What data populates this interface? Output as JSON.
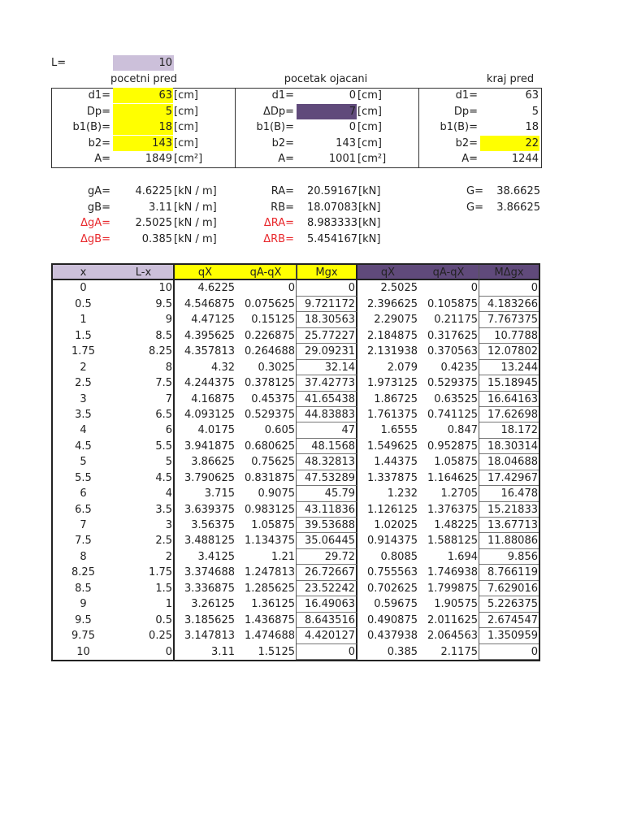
{
  "L": {
    "label": "L=",
    "value": "10"
  },
  "sections": [
    {
      "title": "pocetni pred",
      "rows": [
        {
          "label": "d1=",
          "value": "63",
          "unit": "[cm]"
        },
        {
          "label": "Dp=",
          "value": "5",
          "unit": "[cm]"
        },
        {
          "label": "b1(B)=",
          "value": "18",
          "unit": "[cm]"
        },
        {
          "label": "b2=",
          "value": "143",
          "unit": "[cm]"
        },
        {
          "label": "A=",
          "value": "1849",
          "unit": "[cm²]"
        }
      ]
    },
    {
      "title": "pocetak ojacani",
      "rows": [
        {
          "label": "d1=",
          "value": "0",
          "unit": "[cm]"
        },
        {
          "label": "ΔDp=",
          "value": "7",
          "unit": "[cm]"
        },
        {
          "label": "b1(B)=",
          "value": "0",
          "unit": "[cm]"
        },
        {
          "label": "b2=",
          "value": "143",
          "unit": "[cm]"
        },
        {
          "label": "A=",
          "value": "1001",
          "unit": "[cm²]"
        }
      ]
    },
    {
      "title": "kraj pred",
      "rows": [
        {
          "label": "d1=",
          "value": "63"
        },
        {
          "label": "Dp=",
          "value": "5"
        },
        {
          "label": "b1(B)=",
          "value": "18"
        },
        {
          "label": "b2=",
          "value": "22"
        },
        {
          "label": "A=",
          "value": "1244"
        }
      ]
    }
  ],
  "loads": [
    {
      "label": "gA=",
      "value": "4.6225",
      "unit": "[kN / m]"
    },
    {
      "label": "gB=",
      "value": "3.11",
      "unit": "[kN / m]"
    },
    {
      "label": "ΔgA=",
      "value": "2.5025",
      "unit": "[kN / m]"
    },
    {
      "label": "ΔgB=",
      "value": "0.385",
      "unit": "[kN / m]"
    }
  ],
  "reactions": [
    {
      "label": "RA=",
      "value": "20.59167",
      "unit": "[kN]"
    },
    {
      "label": "RB=",
      "value": "18.07083",
      "unit": "[kN]"
    },
    {
      "label": "ΔRA=",
      "value": "8.983333",
      "unit": "[kN]"
    },
    {
      "label": "ΔRB=",
      "value": "5.454167",
      "unit": "[kN]"
    }
  ],
  "totals": [
    {
      "label": "G=",
      "value": "38.6625"
    },
    {
      "label": "G=",
      "value": "3.86625"
    }
  ],
  "colors": {
    "yellow": "#ffff00",
    "lavender": "#ccc0da",
    "purple": "#604a7b",
    "red": "#e8282c"
  },
  "table": {
    "headers": [
      "x",
      "L-x",
      "qX",
      "qA-qX",
      "Mgx",
      "qX",
      "qA-qX",
      "MΔgx"
    ],
    "rows": [
      [
        "0",
        "10",
        "4.6225",
        "0",
        "0",
        "2.5025",
        "0",
        "0"
      ],
      [
        "0.5",
        "9.5",
        "4.546875",
        "0.075625",
        "9.721172",
        "2.396625",
        "0.105875",
        "4.183266"
      ],
      [
        "1",
        "9",
        "4.47125",
        "0.15125",
        "18.30563",
        "2.29075",
        "0.21175",
        "7.767375"
      ],
      [
        "1.5",
        "8.5",
        "4.395625",
        "0.226875",
        "25.77227",
        "2.184875",
        "0.317625",
        "10.7788"
      ],
      [
        "1.75",
        "8.25",
        "4.357813",
        "0.264688",
        "29.09231",
        "2.131938",
        "0.370563",
        "12.07802"
      ],
      [
        "2",
        "8",
        "4.32",
        "0.3025",
        "32.14",
        "2.079",
        "0.4235",
        "13.244"
      ],
      [
        "2.5",
        "7.5",
        "4.244375",
        "0.378125",
        "37.42773",
        "1.973125",
        "0.529375",
        "15.18945"
      ],
      [
        "3",
        "7",
        "4.16875",
        "0.45375",
        "41.65438",
        "1.86725",
        "0.63525",
        "16.64163"
      ],
      [
        "3.5",
        "6.5",
        "4.093125",
        "0.529375",
        "44.83883",
        "1.761375",
        "0.741125",
        "17.62698"
      ],
      [
        "4",
        "6",
        "4.0175",
        "0.605",
        "47",
        "1.6555",
        "0.847",
        "18.172"
      ],
      [
        "4.5",
        "5.5",
        "3.941875",
        "0.680625",
        "48.1568",
        "1.549625",
        "0.952875",
        "18.30314"
      ],
      [
        "5",
        "5",
        "3.86625",
        "0.75625",
        "48.32813",
        "1.44375",
        "1.05875",
        "18.04688"
      ],
      [
        "5.5",
        "4.5",
        "3.790625",
        "0.831875",
        "47.53289",
        "1.337875",
        "1.164625",
        "17.42967"
      ],
      [
        "6",
        "4",
        "3.715",
        "0.9075",
        "45.79",
        "1.232",
        "1.2705",
        "16.478"
      ],
      [
        "6.5",
        "3.5",
        "3.639375",
        "0.983125",
        "43.11836",
        "1.126125",
        "1.376375",
        "15.21833"
      ],
      [
        "7",
        "3",
        "3.56375",
        "1.05875",
        "39.53688",
        "1.02025",
        "1.48225",
        "13.67713"
      ],
      [
        "7.5",
        "2.5",
        "3.488125",
        "1.134375",
        "35.06445",
        "0.914375",
        "1.588125",
        "11.88086"
      ],
      [
        "8",
        "2",
        "3.4125",
        "1.21",
        "29.72",
        "0.8085",
        "1.694",
        "9.856"
      ],
      [
        "8.25",
        "1.75",
        "3.374688",
        "1.247813",
        "26.72667",
        "0.755563",
        "1.746938",
        "8.766119"
      ],
      [
        "8.5",
        "1.5",
        "3.336875",
        "1.285625",
        "23.52242",
        "0.702625",
        "1.799875",
        "7.629016"
      ],
      [
        "9",
        "1",
        "3.26125",
        "1.36125",
        "16.49063",
        "0.59675",
        "1.90575",
        "5.226375"
      ],
      [
        "9.5",
        "0.5",
        "3.185625",
        "1.436875",
        "8.643516",
        "0.490875",
        "2.011625",
        "2.674547"
      ],
      [
        "9.75",
        "0.25",
        "3.147813",
        "1.474688",
        "4.420127",
        "0.437938",
        "2.064563",
        "1.350959"
      ],
      [
        "10",
        "0",
        "3.11",
        "1.5125",
        "0",
        "0.385",
        "2.1175",
        "0"
      ]
    ]
  }
}
